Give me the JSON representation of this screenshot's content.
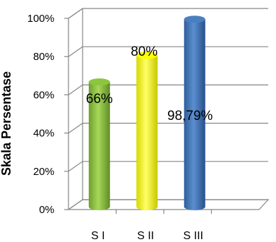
{
  "chart_data": {
    "type": "bar",
    "style": "3d-cylinder",
    "categories": [
      "S I",
      "S II",
      "S III"
    ],
    "values": [
      66,
      80,
      98.79
    ],
    "data_labels": [
      "66%",
      "80%",
      "98,79%"
    ],
    "colors": [
      "#8cc63f",
      "#ffff00",
      "#4a7fc1"
    ],
    "ylabel": "Skala Persentase",
    "ylim": [
      0,
      100
    ],
    "yticks": [
      "0%",
      "20%",
      "40%",
      "60%",
      "80%",
      "100%"
    ],
    "grid": true,
    "legend": "none"
  }
}
